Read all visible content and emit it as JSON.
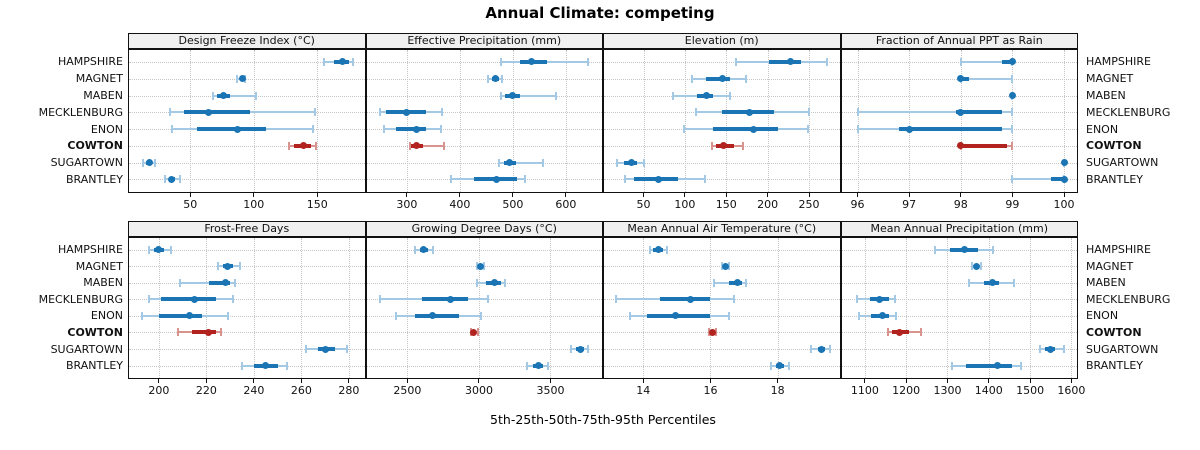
{
  "title": "Annual Climate: competing",
  "axis_label": "5th-25th-50th-75th-95th Percentiles",
  "locations": [
    "HAMPSHIRE",
    "MAGNET",
    "MABEN",
    "MECKLENBURG",
    "ENON",
    "COWTON",
    "SUGARTOWN",
    "BRANTLEY"
  ],
  "highlight_location": "COWTON",
  "percentiles": [
    "5th",
    "25th",
    "50th",
    "75th",
    "95th"
  ],
  "colors": {
    "series": "#1b75b4",
    "series_light": "#a3c9e4",
    "highlight": "#b2231f",
    "highlight_light": "#d9938f",
    "header_bg": "#f0f0f0",
    "grid": "#c6c6c6",
    "border": "#111111"
  },
  "chart_data": [
    {
      "type": "dotplot-interval",
      "title": "Design Freeze Index (°C)",
      "row": 1,
      "col": 1,
      "ticks": [
        50,
        100,
        150
      ],
      "xlim": [
        1,
        188
      ],
      "series": [
        {
          "name": "HAMPSHIRE",
          "p": [
            155,
            163,
            170,
            175,
            178
          ]
        },
        {
          "name": "MAGNET",
          "p": [
            87,
            89,
            91,
            92,
            93
          ]
        },
        {
          "name": "MABEN",
          "p": [
            68,
            71,
            76,
            81,
            102
          ]
        },
        {
          "name": "MECKLENBURG",
          "p": [
            34,
            45,
            64,
            97,
            148
          ]
        },
        {
          "name": "ENON",
          "p": [
            36,
            55,
            87,
            110,
            147
          ]
        },
        {
          "name": "COWTON",
          "p": [
            128,
            132,
            139,
            145,
            149
          ]
        },
        {
          "name": "SUGARTOWN",
          "p": [
            13,
            15,
            18,
            20,
            22
          ]
        },
        {
          "name": "BRANTLEY",
          "p": [
            30,
            33,
            35,
            38,
            42
          ]
        }
      ]
    },
    {
      "type": "dotplot-interval",
      "title": "Effective Precipitation (mm)",
      "row": 1,
      "col": 2,
      "ticks": [
        300,
        400,
        500,
        600
      ],
      "xlim": [
        222,
        670
      ],
      "series": [
        {
          "name": "HAMPSHIRE",
          "p": [
            478,
            514,
            536,
            564,
            641
          ]
        },
        {
          "name": "MAGNET",
          "p": [
            454,
            460,
            468,
            474,
            479
          ]
        },
        {
          "name": "MABEN",
          "p": [
            478,
            486,
            500,
            514,
            581
          ]
        },
        {
          "name": "MECKLENBURG",
          "p": [
            250,
            261,
            300,
            336,
            366
          ]
        },
        {
          "name": "ENON",
          "p": [
            256,
            280,
            318,
            336,
            364
          ]
        },
        {
          "name": "COWTON",
          "p": [
            305,
            308,
            318,
            330,
            371
          ]
        },
        {
          "name": "SUGARTOWN",
          "p": [
            474,
            483,
            494,
            505,
            556
          ]
        },
        {
          "name": "BRANTLEY",
          "p": [
            384,
            427,
            470,
            508,
            523
          ]
        }
      ]
    },
    {
      "type": "dotplot-interval",
      "title": "Elevation (m)",
      "row": 1,
      "col": 3,
      "ticks": [
        50,
        100,
        150,
        200,
        250
      ],
      "xlim": [
        1,
        288
      ],
      "series": [
        {
          "name": "HAMPSHIRE",
          "p": [
            162,
            202,
            228,
            240,
            272
          ]
        },
        {
          "name": "MAGNET",
          "p": [
            109,
            125,
            145,
            155,
            174
          ]
        },
        {
          "name": "MABEN",
          "p": [
            85,
            114,
            126,
            134,
            154
          ]
        },
        {
          "name": "MECKLENBURG",
          "p": [
            113,
            145,
            178,
            208,
            250
          ]
        },
        {
          "name": "ENON",
          "p": [
            99,
            134,
            183,
            212,
            249
          ]
        },
        {
          "name": "COWTON",
          "p": [
            133,
            137,
            147,
            159,
            170
          ]
        },
        {
          "name": "SUGARTOWN",
          "p": [
            18,
            26,
            35,
            42,
            50
          ]
        },
        {
          "name": "BRANTLEY",
          "p": [
            28,
            39,
            68,
            92,
            124
          ]
        }
      ]
    },
    {
      "type": "dotplot-interval",
      "title": "Fraction of Annual PPT as Rain",
      "row": 1,
      "col": 4,
      "ticks": [
        96,
        97,
        98,
        99,
        100
      ],
      "xlim": [
        95.67,
        100.27
      ],
      "series": [
        {
          "name": "HAMPSHIRE",
          "p": [
            98,
            98.8,
            99,
            99,
            99
          ]
        },
        {
          "name": "MAGNET",
          "p": [
            98,
            98,
            98,
            98.15,
            99
          ]
        },
        {
          "name": "MABEN",
          "p": [
            99,
            99,
            99,
            99,
            99
          ]
        },
        {
          "name": "MECKLENBURG",
          "p": [
            96,
            97.9,
            98,
            98.8,
            99
          ]
        },
        {
          "name": "ENON",
          "p": [
            96,
            96.8,
            97,
            98.8,
            99
          ]
        },
        {
          "name": "COWTON",
          "p": [
            98,
            98,
            98,
            98.9,
            99
          ]
        },
        {
          "name": "SUGARTOWN",
          "p": [
            100,
            100,
            100,
            100,
            100
          ]
        },
        {
          "name": "BRANTLEY",
          "p": [
            99,
            99.75,
            100,
            100,
            100
          ]
        }
      ]
    },
    {
      "type": "dotplot-interval",
      "title": "Frost-Free Days",
      "row": 2,
      "col": 1,
      "ticks": [
        200,
        220,
        240,
        260,
        280
      ],
      "xlim": [
        187,
        287
      ],
      "series": [
        {
          "name": "HAMPSHIRE",
          "p": [
            196,
            198,
            200,
            202,
            205
          ]
        },
        {
          "name": "MAGNET",
          "p": [
            225,
            227,
            229,
            231,
            234
          ]
        },
        {
          "name": "MABEN",
          "p": [
            209,
            221,
            228,
            230,
            232
          ]
        },
        {
          "name": "MECKLENBURG",
          "p": [
            196,
            201,
            215,
            224,
            231
          ]
        },
        {
          "name": "ENON",
          "p": [
            193,
            200,
            213,
            218,
            229
          ]
        },
        {
          "name": "COWTON",
          "p": [
            208,
            214,
            221,
            224,
            226
          ]
        },
        {
          "name": "SUGARTOWN",
          "p": [
            262,
            267,
            270,
            274,
            279
          ]
        },
        {
          "name": "BRANTLEY",
          "p": [
            235,
            240,
            245,
            250,
            254
          ]
        }
      ]
    },
    {
      "type": "dotplot-interval",
      "title": "Growing Degree Days (°C)",
      "row": 2,
      "col": 2,
      "ticks": [
        2500,
        3000,
        3500
      ],
      "xlim": [
        2207,
        3867
      ],
      "series": [
        {
          "name": "HAMPSHIRE",
          "p": [
            2556,
            2586,
            2614,
            2644,
            2679
          ]
        },
        {
          "name": "MAGNET",
          "p": [
            2988,
            3000,
            3012,
            3024,
            3035
          ]
        },
        {
          "name": "MABEN",
          "p": [
            2986,
            3051,
            3110,
            3156,
            3179
          ]
        },
        {
          "name": "MECKLENBURG",
          "p": [
            2310,
            2600,
            2800,
            2925,
            3065
          ]
        },
        {
          "name": "ENON",
          "p": [
            2420,
            2550,
            2672,
            2860,
            3016
          ]
        },
        {
          "name": "COWTON",
          "p": [
            2942,
            2955,
            2965,
            2980,
            2993
          ]
        },
        {
          "name": "SUGARTOWN",
          "p": [
            3640,
            3680,
            3710,
            3733,
            3765
          ]
        },
        {
          "name": "BRANTLEY",
          "p": [
            3335,
            3377,
            3419,
            3447,
            3481
          ]
        }
      ]
    },
    {
      "type": "dotplot-interval",
      "title": "Mean Annual Air Temperature (°C)",
      "row": 2,
      "col": 3,
      "ticks": [
        14,
        16,
        18
      ],
      "xlim": [
        12.8,
        19.87
      ],
      "series": [
        {
          "name": "HAMPSHIRE",
          "p": [
            14.2,
            14.3,
            14.45,
            14.6,
            14.7
          ]
        },
        {
          "name": "MAGNET",
          "p": [
            16.35,
            16.4,
            16.45,
            16.5,
            16.55
          ]
        },
        {
          "name": "MABEN",
          "p": [
            16.1,
            16.55,
            16.8,
            16.95,
            17.05
          ]
        },
        {
          "name": "MECKLENBURG",
          "p": [
            13.2,
            14.5,
            15.4,
            16.0,
            16.7
          ]
        },
        {
          "name": "ENON",
          "p": [
            13.6,
            14.1,
            14.95,
            16.0,
            16.55
          ]
        },
        {
          "name": "COWTON",
          "p": [
            15.95,
            16.0,
            16.05,
            16.1,
            16.15
          ]
        },
        {
          "name": "SUGARTOWN",
          "p": [
            19.0,
            19.2,
            19.3,
            19.4,
            19.55
          ]
        },
        {
          "name": "BRANTLEY",
          "p": [
            17.8,
            17.95,
            18.05,
            18.2,
            18.35
          ]
        }
      ]
    },
    {
      "type": "dotplot-interval",
      "title": "Mean Annual Precipitation (mm)",
      "row": 2,
      "col": 4,
      "ticks": [
        1100,
        1200,
        1300,
        1400,
        1500,
        1600
      ],
      "xlim": [
        1041,
        1616
      ],
      "series": [
        {
          "name": "HAMPSHIRE",
          "p": [
            1270,
            1305,
            1340,
            1375,
            1410
          ]
        },
        {
          "name": "MAGNET",
          "p": [
            1360,
            1365,
            1371,
            1376,
            1382
          ]
        },
        {
          "name": "MABEN",
          "p": [
            1352,
            1388,
            1408,
            1424,
            1462
          ]
        },
        {
          "name": "MECKLENBURG",
          "p": [
            1080,
            1112,
            1135,
            1158,
            1172
          ]
        },
        {
          "name": "ENON",
          "p": [
            1086,
            1115,
            1142,
            1158,
            1175
          ]
        },
        {
          "name": "COWTON",
          "p": [
            1156,
            1166,
            1184,
            1206,
            1236
          ]
        },
        {
          "name": "SUGARTOWN",
          "p": [
            1524,
            1536,
            1550,
            1561,
            1582
          ]
        },
        {
          "name": "BRANTLEY",
          "p": [
            1312,
            1344,
            1422,
            1456,
            1478
          ]
        }
      ]
    }
  ]
}
